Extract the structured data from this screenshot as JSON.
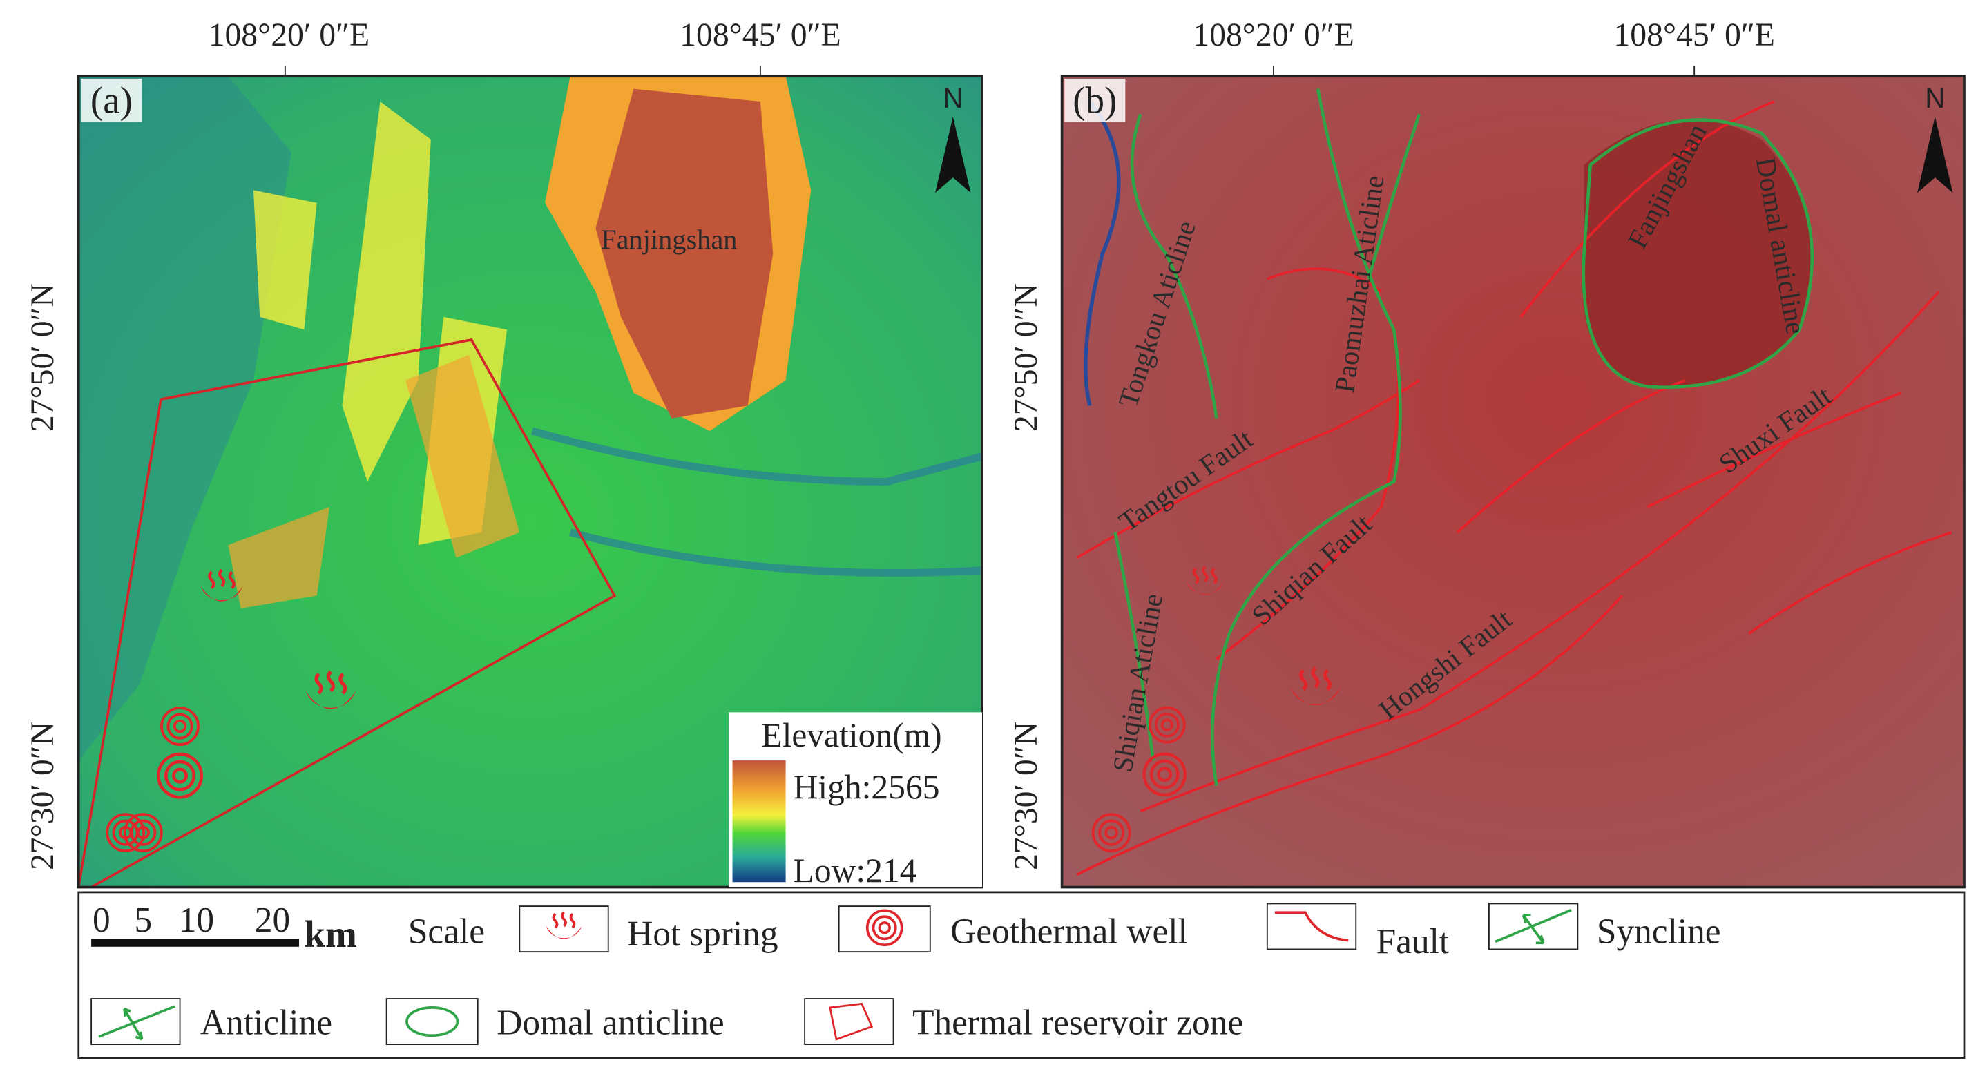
{
  "panels": [
    {
      "label": "(a)",
      "north": "N",
      "x_labels": [
        "108°20′ 0″E",
        "108°45′ 0″E"
      ],
      "y_labels": [
        "27°50′ 0″N",
        "27°30′ 0″N"
      ],
      "place_labels": [
        "Fanjingshan"
      ],
      "elevation_legend": {
        "title": "Elevation(m)",
        "high": "High:2565",
        "low": "Low:214"
      }
    },
    {
      "label": "(b)",
      "north": "N",
      "x_labels": [
        "108°20′ 0″E",
        "108°45′ 0″E"
      ],
      "y_labels": [
        "27°50′ 0″N",
        "27°30′ 0″N"
      ],
      "place_labels": [
        "Tongkou Aticline",
        "Paomuzhai Aticline",
        "Tangtou Fault",
        "Shiqian Fault",
        "Shiqian Aticline",
        "Hongshi Fault",
        "Shuxi Fault",
        "Fanjingshan",
        "Domal anticline"
      ]
    }
  ],
  "legend": {
    "scale_numbers": [
      "0",
      "5",
      "10",
      "20"
    ],
    "scale_unit": "km",
    "items": [
      "Scale",
      "Hot spring",
      "Geothermal well",
      "Fault",
      "Syncline",
      "Anticline",
      "Domal anticline",
      "Thermal reservoir zone"
    ]
  }
}
